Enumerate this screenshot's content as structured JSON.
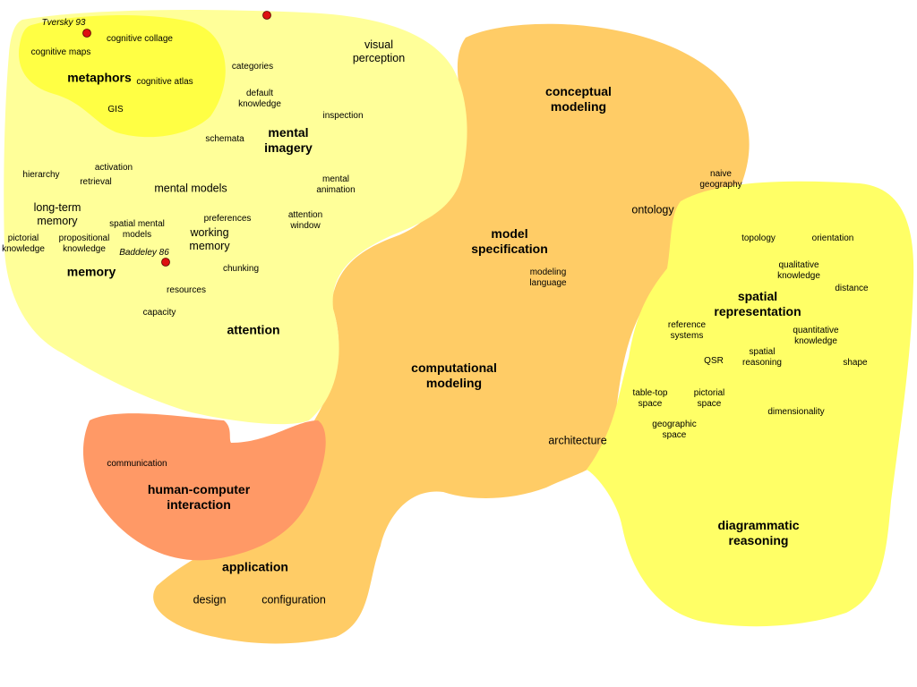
{
  "colors": {
    "cognition_region": "#FFFF99",
    "metaphors_region": "#FFFF44",
    "modeling_region": "#FFCC66",
    "spatial_region": "#FFFF66",
    "hci_region": "#FF9966",
    "marker": "#DD1111"
  },
  "labels": {
    "tversky": "Tversky 93",
    "cognitive_collage": "cognitive collage",
    "cognitive_maps": "cognitive maps",
    "metaphors": "metaphors",
    "cognitive_atlas": "cognitive atlas",
    "gis": "GIS",
    "categories": "categories",
    "visual_perception": "visual\nperception",
    "default_knowledge": "default\nknowledge",
    "inspection": "inspection",
    "schemata": "schemata",
    "mental_imagery": "mental\nimagery",
    "hierarchy": "hierarchy",
    "activation": "activation",
    "retrieval": "retrieval",
    "mental_models": "mental models",
    "mental_animation": "mental\nanimation",
    "long_term_memory": "long-term\nmemory",
    "spatial_mental_models": "spatial mental\nmodels",
    "preferences": "preferences",
    "attention_window": "attention\nwindow",
    "working_memory": "working\nmemory",
    "pictorial_knowledge": "pictorial\nknowledge",
    "propositional_knowledge": "propositional\nknowledge",
    "baddeley": "Baddeley 86",
    "memory": "memory",
    "chunking": "chunking",
    "resources": "resources",
    "capacity": "capacity",
    "attention": "attention",
    "conceptual_modeling": "conceptual\nmodeling",
    "naive_geography": "naive\ngeography",
    "ontology": "ontology",
    "model_specification": "model\nspecification",
    "modeling_language": "modeling\nlanguage",
    "computational_modeling": "computational\nmodeling",
    "architecture": "architecture",
    "topology": "topology",
    "orientation": "orientation",
    "qualitative_knowledge": "qualitative\nknowledge",
    "distance": "distance",
    "spatial_representation": "spatial\nrepresentation",
    "reference_systems": "reference\nsystems",
    "quantitative_knowledge": "quantitative\nknowledge",
    "qsr": "QSR",
    "spatial_reasoning": "spatial\nreasoning",
    "shape": "shape",
    "table_top_space": "table-top\nspace",
    "pictorial_space": "pictorial\nspace",
    "dimensionality": "dimensionality",
    "geographic_space": "geographic\nspace",
    "diagrammatic_reasoning": "diagrammatic\nreasoning",
    "communication": "communication",
    "hci": "human-computer\ninteraction",
    "application": "application",
    "design": "design",
    "configuration": "configuration"
  }
}
